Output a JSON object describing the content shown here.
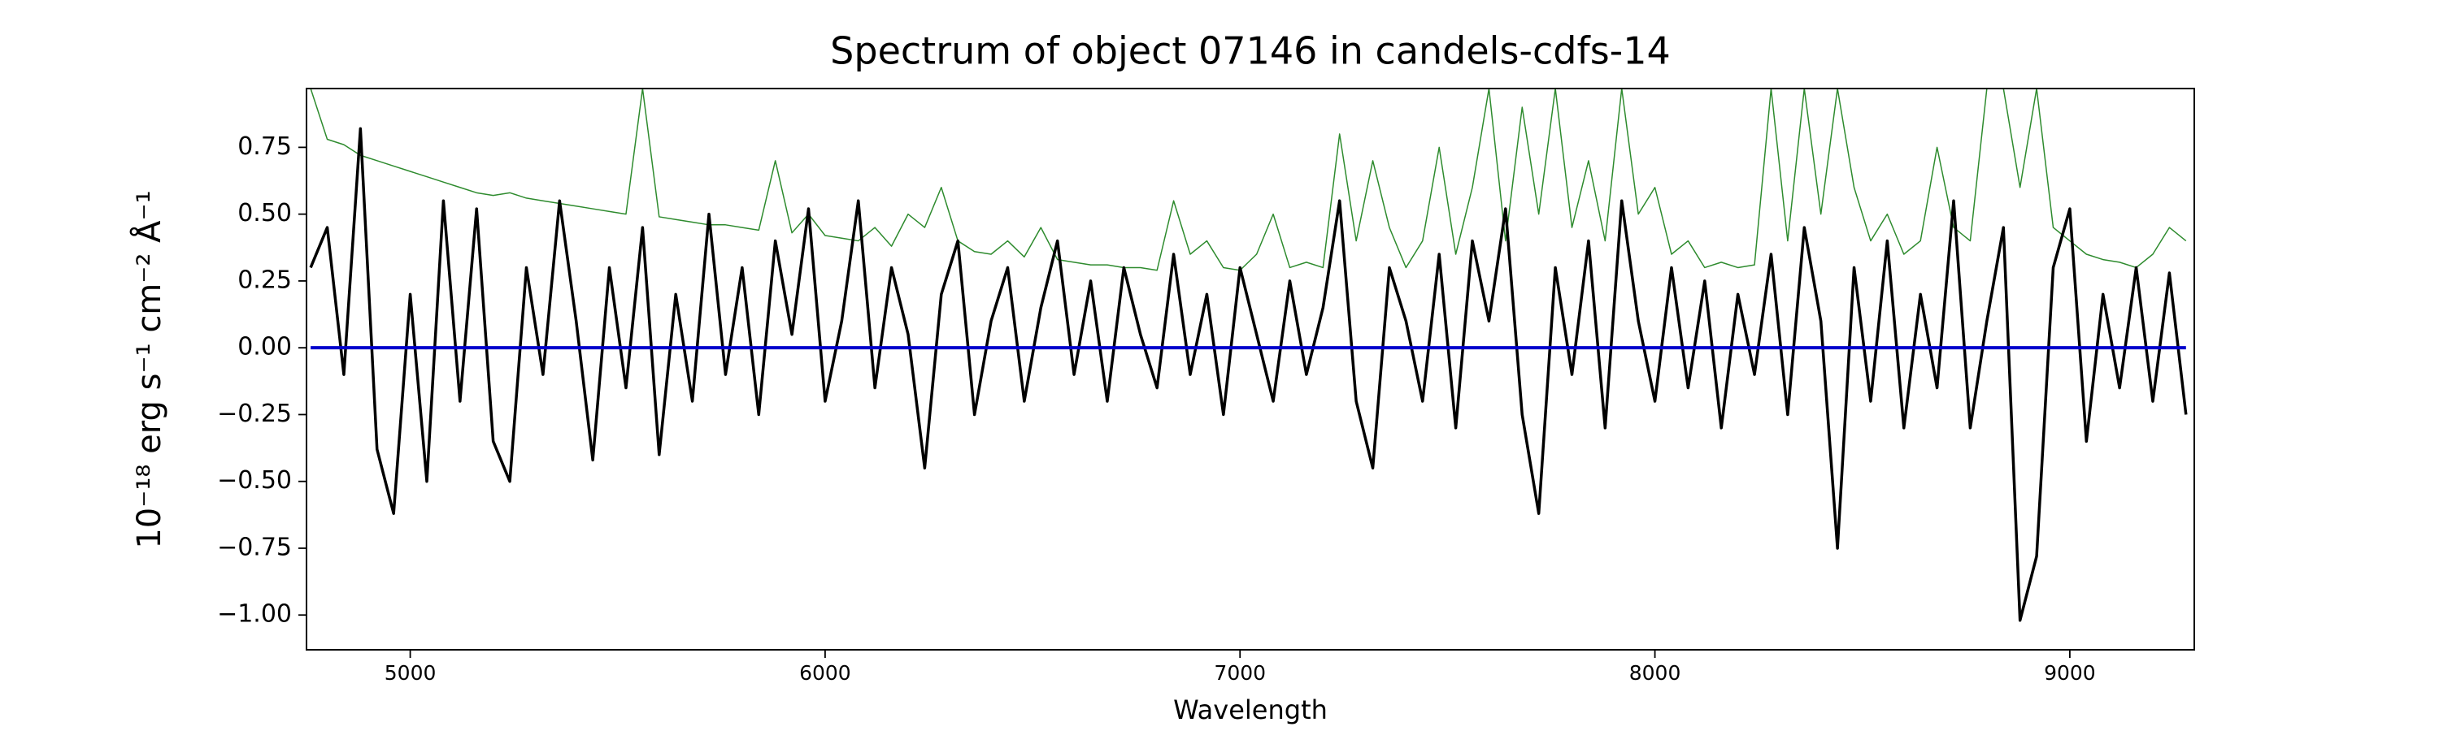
{
  "chart_data": {
    "type": "line",
    "title": "Spectrum of object 07146 in candels-cdfs-14",
    "xlabel": "Wavelength",
    "ylabel": "10⁻¹⁸ erg s⁻¹ cm⁻² Å⁻¹",
    "xlim": [
      4750,
      9300
    ],
    "ylim": [
      -1.13,
      0.97
    ],
    "xticks": [
      5000,
      6000,
      7000,
      8000,
      9000
    ],
    "yticks": [
      {
        "value": 0.75,
        "label": "0.75"
      },
      {
        "value": 0.5,
        "label": "0.50"
      },
      {
        "value": 0.25,
        "label": "0.25"
      },
      {
        "value": 0,
        "label": "0.00"
      },
      {
        "value": -0.25,
        "label": "−0.25"
      },
      {
        "value": -0.5,
        "label": "−0.50"
      },
      {
        "value": -0.75,
        "label": "−0.75"
      },
      {
        "value": -1,
        "label": "−1.00"
      }
    ],
    "grid": false,
    "x": [
      4760,
      4800,
      4840,
      4880,
      4920,
      4960,
      5000,
      5040,
      5080,
      5120,
      5160,
      5200,
      5240,
      5280,
      5320,
      5360,
      5400,
      5440,
      5480,
      5520,
      5560,
      5600,
      5640,
      5680,
      5720,
      5760,
      5800,
      5840,
      5880,
      5920,
      5960,
      6000,
      6040,
      6080,
      6120,
      6160,
      6200,
      6240,
      6280,
      6320,
      6360,
      6400,
      6440,
      6480,
      6520,
      6560,
      6600,
      6640,
      6680,
      6720,
      6760,
      6800,
      6840,
      6880,
      6920,
      6960,
      7000,
      7040,
      7080,
      7120,
      7160,
      7200,
      7240,
      7280,
      7320,
      7360,
      7400,
      7440,
      7480,
      7520,
      7560,
      7600,
      7640,
      7680,
      7720,
      7760,
      7800,
      7840,
      7880,
      7920,
      7960,
      8000,
      8040,
      8080,
      8120,
      8160,
      8200,
      8240,
      8280,
      8320,
      8360,
      8400,
      8440,
      8480,
      8520,
      8560,
      8600,
      8640,
      8680,
      8720,
      8760,
      8800,
      8840,
      8880,
      8920,
      8960,
      9000,
      9040,
      9080,
      9120,
      9160,
      9200,
      9240,
      9280
    ],
    "series": [
      {
        "color": "#2e8b2e",
        "width": 1.5,
        "values": [
          0.97,
          0.78,
          0.76,
          0.72,
          0.7,
          0.68,
          0.66,
          0.64,
          0.62,
          0.6,
          0.58,
          0.57,
          0.58,
          0.56,
          0.55,
          0.54,
          0.53,
          0.52,
          0.51,
          0.5,
          0.97,
          0.49,
          0.48,
          0.47,
          0.46,
          0.46,
          0.45,
          0.44,
          0.7,
          0.43,
          0.5,
          0.42,
          0.41,
          0.4,
          0.45,
          0.38,
          0.5,
          0.45,
          0.6,
          0.4,
          0.36,
          0.35,
          0.4,
          0.34,
          0.45,
          0.33,
          0.32,
          0.31,
          0.31,
          0.3,
          0.3,
          0.29,
          0.55,
          0.35,
          0.4,
          0.3,
          0.29,
          0.35,
          0.5,
          0.3,
          0.32,
          0.3,
          0.8,
          0.4,
          0.7,
          0.45,
          0.3,
          0.4,
          0.75,
          0.35,
          0.6,
          0.97,
          0.4,
          0.9,
          0.5,
          0.97,
          0.45,
          0.7,
          0.4,
          0.97,
          0.5,
          0.6,
          0.35,
          0.4,
          0.3,
          0.32,
          0.3,
          0.31,
          0.97,
          0.4,
          0.97,
          0.5,
          0.97,
          0.6,
          0.4,
          0.5,
          0.35,
          0.4,
          0.75,
          0.45,
          0.4,
          0.97,
          0.97,
          0.6,
          0.97,
          0.45,
          0.4,
          0.35,
          0.33,
          0.32,
          0.3,
          0.35,
          0.45,
          0.4
        ]
      },
      {
        "color": "#000000",
        "width": 3.5,
        "values": [
          0.3,
          0.45,
          -0.1,
          0.82,
          -0.38,
          -0.62,
          0.2,
          -0.5,
          0.55,
          -0.2,
          0.52,
          -0.35,
          -0.5,
          0.3,
          -0.1,
          0.55,
          0.1,
          -0.42,
          0.3,
          -0.15,
          0.45,
          -0.4,
          0.2,
          -0.2,
          0.5,
          -0.1,
          0.3,
          -0.25,
          0.4,
          0.05,
          0.52,
          -0.2,
          0.1,
          0.55,
          -0.15,
          0.3,
          0.05,
          -0.45,
          0.2,
          0.4,
          -0.25,
          0.1,
          0.3,
          -0.2,
          0.15,
          0.4,
          -0.1,
          0.25,
          -0.2,
          0.3,
          0.05,
          -0.15,
          0.35,
          -0.1,
          0.2,
          -0.25,
          0.3,
          0.05,
          -0.2,
          0.25,
          -0.1,
          0.15,
          0.55,
          -0.2,
          -0.45,
          0.3,
          0.1,
          -0.2,
          0.35,
          -0.3,
          0.4,
          0.1,
          0.52,
          -0.25,
          -0.62,
          0.3,
          -0.1,
          0.4,
          -0.3,
          0.55,
          0.1,
          -0.2,
          0.3,
          -0.15,
          0.25,
          -0.3,
          0.2,
          -0.1,
          0.35,
          -0.25,
          0.45,
          0.1,
          -0.75,
          0.3,
          -0.2,
          0.4,
          -0.3,
          0.2,
          -0.15,
          0.55,
          -0.3,
          0.1,
          0.45,
          -1.02,
          -0.78,
          0.3,
          0.52,
          -0.35,
          0.2,
          -0.15,
          0.3,
          -0.2,
          0.28,
          -0.25
        ]
      },
      {
        "color": "#0000cc",
        "width": 4,
        "values": [
          0,
          0,
          0,
          0,
          0,
          0,
          0,
          0,
          0,
          0,
          0,
          0,
          0,
          0,
          0,
          0,
          0,
          0,
          0,
          0,
          0,
          0,
          0,
          0,
          0,
          0,
          0,
          0,
          0,
          0,
          0,
          0,
          0,
          0,
          0,
          0,
          0,
          0,
          0,
          0,
          0,
          0,
          0,
          0,
          0,
          0,
          0,
          0,
          0,
          0,
          0,
          0,
          0,
          0,
          0,
          0,
          0,
          0,
          0,
          0,
          0,
          0,
          0,
          0,
          0,
          0,
          0,
          0,
          0,
          0,
          0,
          0,
          0,
          0,
          0,
          0,
          0,
          0,
          0,
          0,
          0,
          0,
          0,
          0,
          0,
          0,
          0,
          0,
          0,
          0,
          0,
          0,
          0,
          0,
          0,
          0,
          0,
          0,
          0,
          0,
          0,
          0,
          0,
          0,
          0,
          0,
          0,
          0,
          0,
          0,
          0,
          0,
          0,
          0
        ]
      }
    ]
  }
}
